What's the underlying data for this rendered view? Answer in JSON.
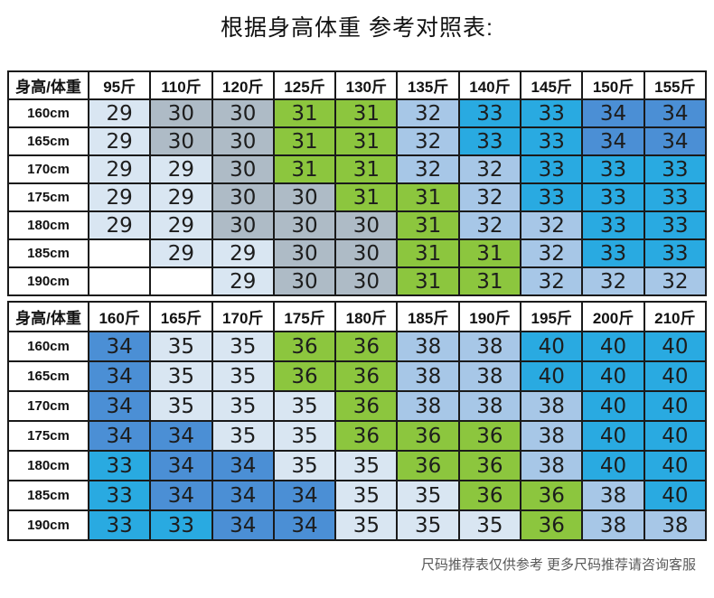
{
  "title": "根据身高体重 参考对照表:",
  "footer_note": "尺码推荐表仅供参考 更多尺码推荐请咨询客服",
  "colors": {
    "pale_blue": "#d9e6f2",
    "gray_blue": "#aebbc6",
    "green": "#8cc63e",
    "light_blue": "#a7c7e7",
    "cyan_blue": "#29aae1",
    "medium_blue": "#4b8fd5",
    "empty": "#ffffff",
    "border": "#1a1a1a",
    "footer_text": "#595959"
  },
  "size_color_map": {
    "29": "pale_blue",
    "30": "gray_blue",
    "31": "green",
    "32": "light_blue",
    "33": "cyan_blue",
    "34": "medium_blue",
    "35": "pale_blue",
    "36": "green",
    "38": "light_blue",
    "40": "cyan_blue",
    "": "empty"
  },
  "chart_data": [
    {
      "type": "table",
      "title": "根据身高体重 参考对照表:",
      "corner_label": "身高/体重",
      "columns": [
        "95斤",
        "110斤",
        "120斤",
        "125斤",
        "130斤",
        "135斤",
        "140斤",
        "145斤",
        "150斤",
        "155斤"
      ],
      "rows": [
        {
          "label": "160cm",
          "values": [
            "29",
            "30",
            "30",
            "31",
            "31",
            "32",
            "33",
            "33",
            "34",
            "34"
          ]
        },
        {
          "label": "165cm",
          "values": [
            "29",
            "30",
            "30",
            "31",
            "31",
            "32",
            "33",
            "33",
            "34",
            "34"
          ]
        },
        {
          "label": "170cm",
          "values": [
            "29",
            "29",
            "30",
            "31",
            "31",
            "32",
            "32",
            "33",
            "33",
            "33"
          ]
        },
        {
          "label": "175cm",
          "values": [
            "29",
            "29",
            "30",
            "30",
            "31",
            "31",
            "32",
            "33",
            "33",
            "33"
          ]
        },
        {
          "label": "180cm",
          "values": [
            "29",
            "29",
            "30",
            "30",
            "30",
            "31",
            "32",
            "32",
            "33",
            "33"
          ]
        },
        {
          "label": "185cm",
          "values": [
            "",
            "29",
            "29",
            "30",
            "30",
            "31",
            "31",
            "32",
            "33",
            "33"
          ]
        },
        {
          "label": "190cm",
          "values": [
            "",
            "",
            "29",
            "30",
            "30",
            "31",
            "31",
            "32",
            "32",
            "32"
          ]
        }
      ]
    },
    {
      "type": "table",
      "corner_label": "身高/体重",
      "columns": [
        "160斤",
        "165斤",
        "170斤",
        "175斤",
        "180斤",
        "185斤",
        "190斤",
        "195斤",
        "200斤",
        "210斤"
      ],
      "rows": [
        {
          "label": "160cm",
          "values": [
            "34",
            "35",
            "35",
            "36",
            "36",
            "38",
            "38",
            "40",
            "40",
            "40"
          ]
        },
        {
          "label": "165cm",
          "values": [
            "34",
            "35",
            "35",
            "36",
            "36",
            "38",
            "38",
            "40",
            "40",
            "40"
          ]
        },
        {
          "label": "170cm",
          "values": [
            "34",
            "35",
            "35",
            "35",
            "36",
            "38",
            "38",
            "38",
            "40",
            "40"
          ]
        },
        {
          "label": "175cm",
          "values": [
            "34",
            "34",
            "35",
            "35",
            "36",
            "36",
            "36",
            "38",
            "40",
            "40"
          ]
        },
        {
          "label": "180cm",
          "values": [
            "33",
            "34",
            "34",
            "35",
            "35",
            "36",
            "36",
            "38",
            "40",
            "40"
          ]
        },
        {
          "label": "185cm",
          "values": [
            "33",
            "34",
            "34",
            "34",
            "35",
            "35",
            "36",
            "36",
            "38",
            "40"
          ]
        },
        {
          "label": "190cm",
          "values": [
            "33",
            "33",
            "34",
            "34",
            "35",
            "35",
            "35",
            "36",
            "38",
            "38"
          ]
        }
      ]
    }
  ]
}
